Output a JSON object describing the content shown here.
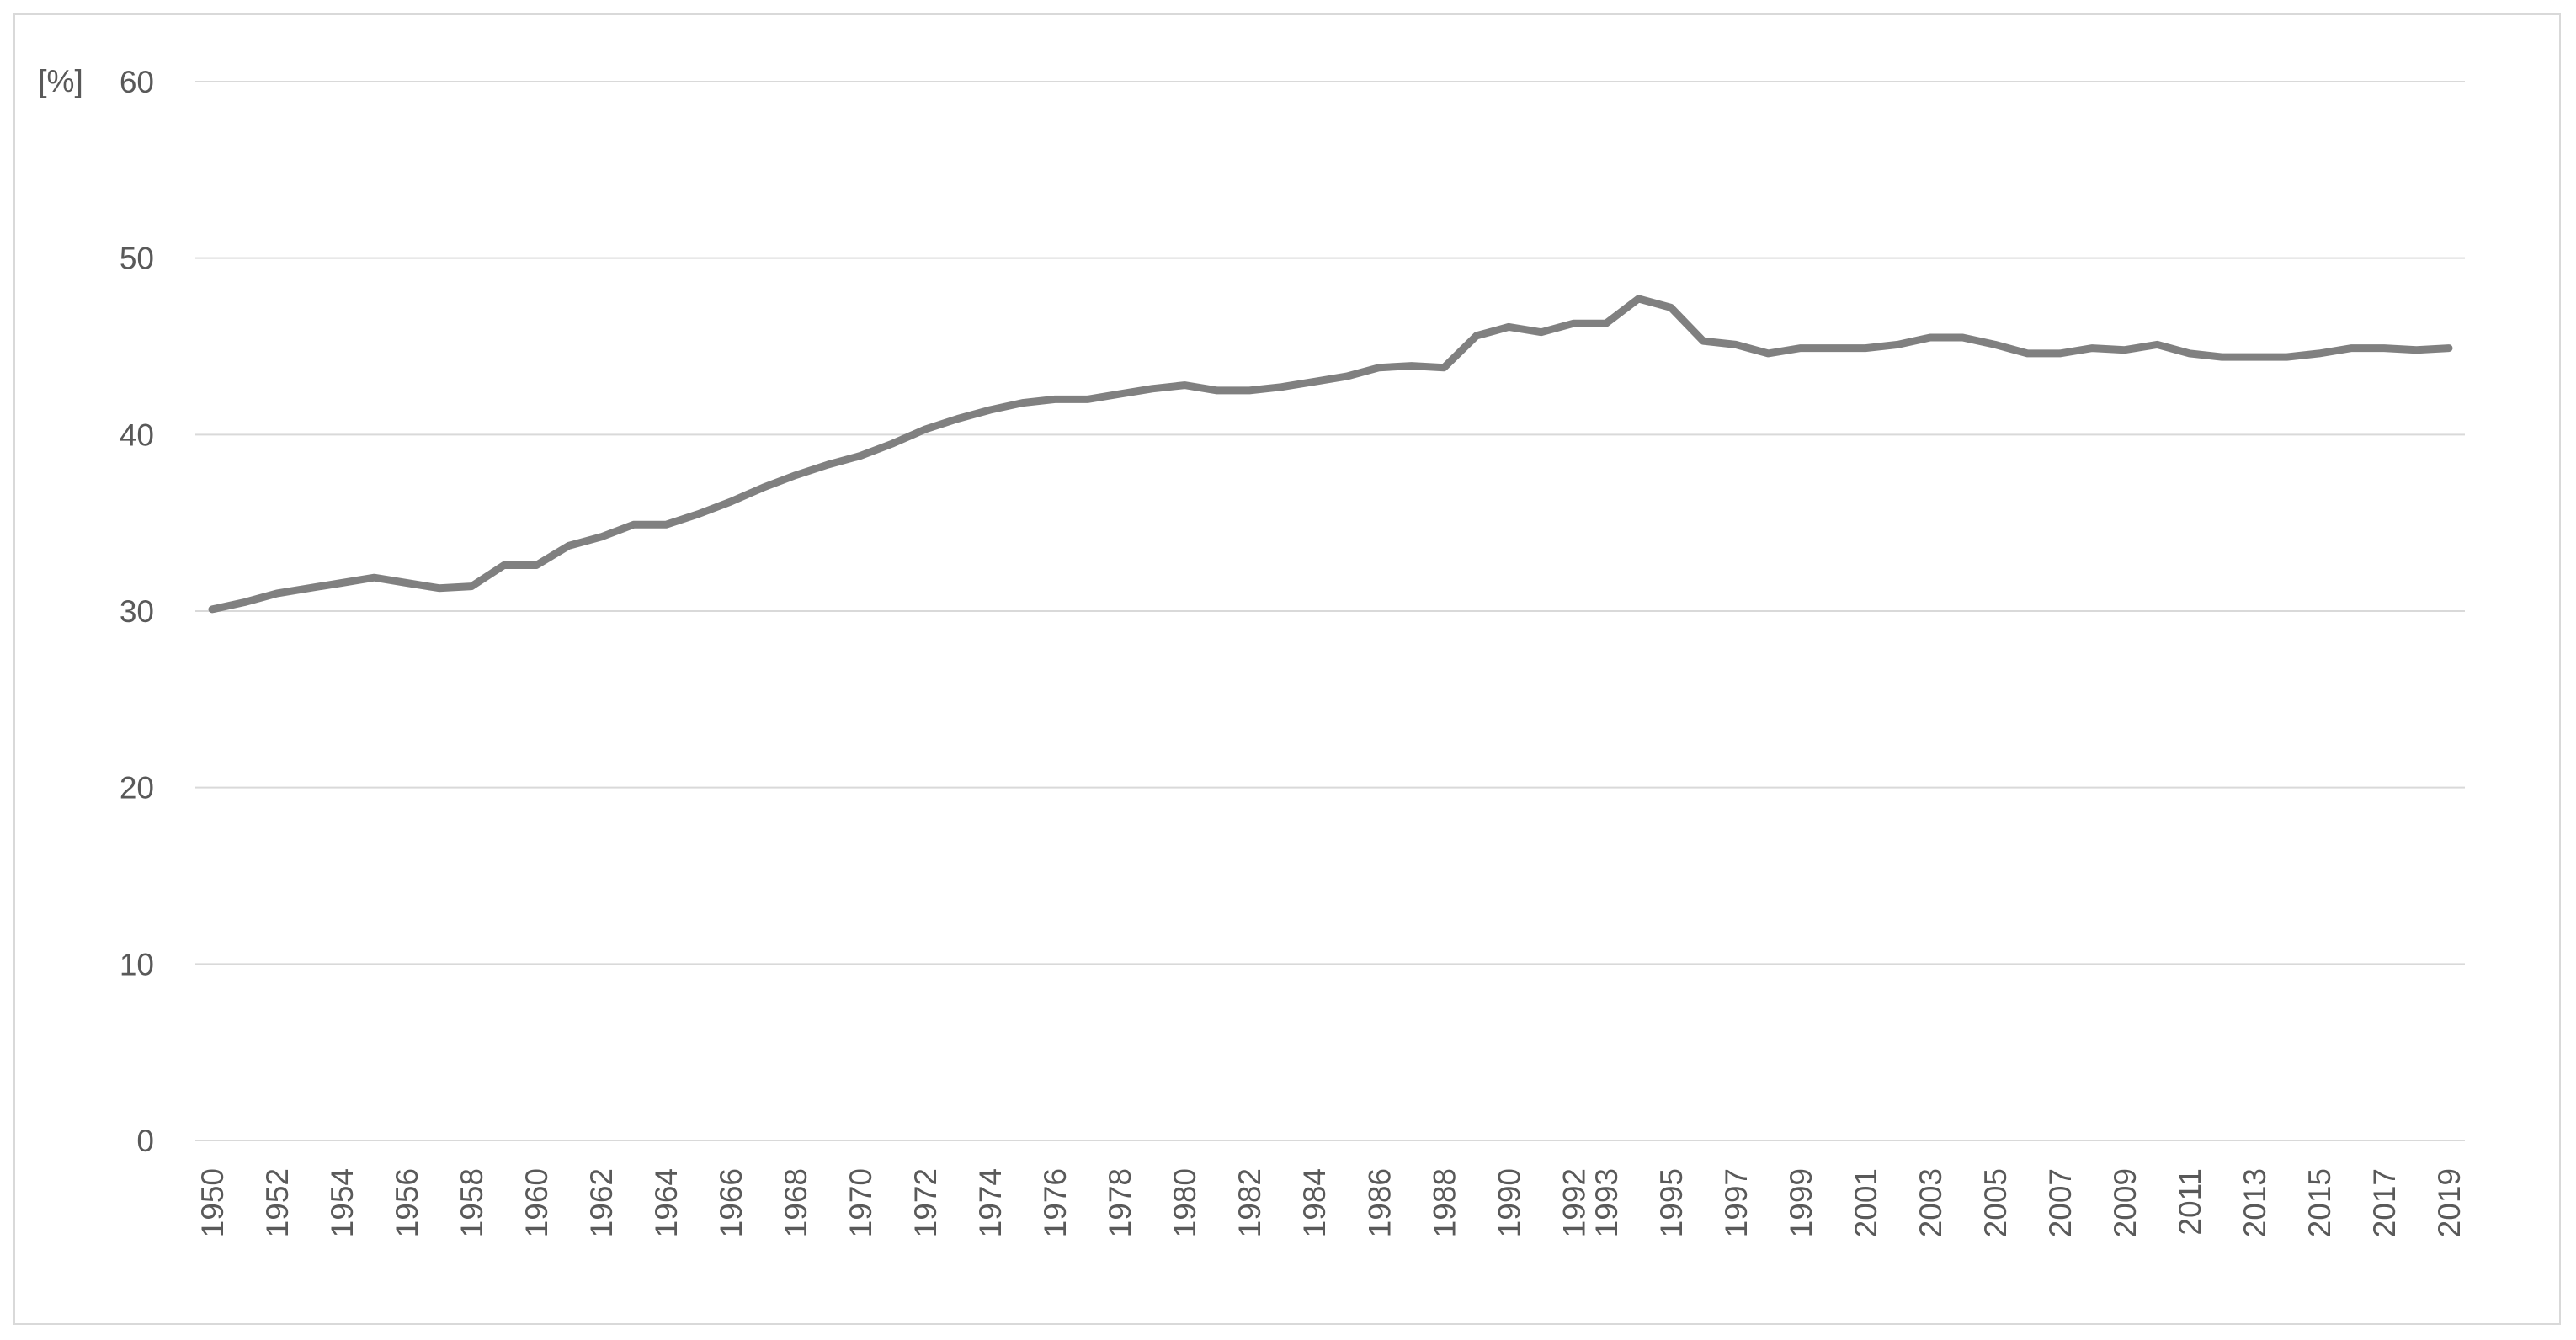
{
  "chart_data": {
    "type": "line",
    "title": "",
    "xlabel": "",
    "ylabel": "[%]",
    "ylim": [
      0,
      60
    ],
    "y_ticks": [
      "0",
      "10",
      "20",
      "30",
      "40",
      "50",
      "60"
    ],
    "grid": true,
    "legend": "none",
    "line_color": "#808080",
    "grid_color": "#d9d9d9",
    "x_tick_labels": [
      "1950",
      "1952",
      "1954",
      "1956",
      "1958",
      "1960",
      "1962",
      "1964",
      "1966",
      "1968",
      "1970",
      "1972",
      "1974",
      "1976",
      "1978",
      "1980",
      "1982",
      "1984",
      "1986",
      "1988",
      "1990",
      "1992",
      "1993",
      "1995",
      "1997",
      "1999",
      "2001",
      "2003",
      "2005",
      "2007",
      "2009",
      "2011",
      "2013",
      "2015",
      "2017",
      "2019"
    ],
    "series": [
      {
        "x": [
          1950,
          1951,
          1952,
          1953,
          1954,
          1955,
          1956,
          1957,
          1958,
          1959,
          1960,
          1961,
          1962,
          1963,
          1964,
          1965,
          1966,
          1967,
          1968,
          1969,
          1970,
          1971,
          1972,
          1973,
          1974,
          1975,
          1976,
          1977,
          1978,
          1979,
          1980,
          1981,
          1982,
          1983,
          1984,
          1985,
          1986,
          1987,
          1988,
          1989,
          1990,
          1991,
          1992,
          1993,
          1994,
          1995,
          1996,
          1997,
          1998,
          1999,
          2000,
          2001,
          2002,
          2003,
          2004,
          2005,
          2006,
          2007,
          2008,
          2009,
          2010,
          2011,
          2012,
          2013,
          2014,
          2015,
          2016,
          2017,
          2018,
          2019
        ],
        "values": [
          30.1,
          30.5,
          31.0,
          31.3,
          31.6,
          31.9,
          31.6,
          31.3,
          31.4,
          32.6,
          32.6,
          33.7,
          34.2,
          34.9,
          34.9,
          35.5,
          36.2,
          37.0,
          37.7,
          38.3,
          38.8,
          39.5,
          40.3,
          40.9,
          41.4,
          41.8,
          42.0,
          42.0,
          42.3,
          42.6,
          42.8,
          42.5,
          42.5,
          42.7,
          43.0,
          43.3,
          43.8,
          43.9,
          43.8,
          45.6,
          46.1,
          45.8,
          46.3,
          46.3,
          47.7,
          47.2,
          45.3,
          45.1,
          44.6,
          44.9,
          44.9,
          44.9,
          45.1,
          45.5,
          45.5,
          45.1,
          44.6,
          44.6,
          44.9,
          44.8,
          45.1,
          44.6,
          44.4,
          44.4,
          44.4,
          44.6,
          44.9,
          44.9,
          44.8,
          44.9
        ]
      }
    ]
  }
}
